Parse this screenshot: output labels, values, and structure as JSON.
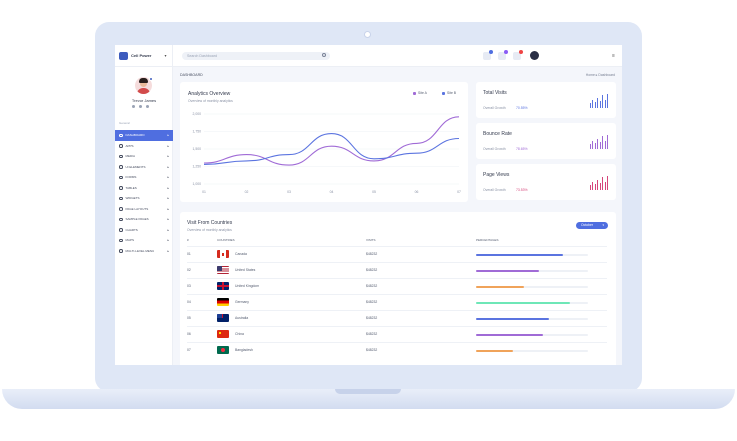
{
  "brand": {
    "name": "Cell Power"
  },
  "search": {
    "placeholder": "Search Dashboard"
  },
  "topbar": {
    "badges": [
      {
        "color": "#4f6ee0"
      },
      {
        "color": "#8b5cf6"
      },
      {
        "color": "#ef4444"
      }
    ]
  },
  "user": {
    "name": "Trevor James"
  },
  "sidebar": {
    "section_label": "General",
    "items": [
      {
        "label": "DASHBOARD",
        "active": true
      },
      {
        "label": "APPS"
      },
      {
        "label": "MEDIA"
      },
      {
        "label": "UI ELEMENTS"
      },
      {
        "label": "FORMS"
      },
      {
        "label": "TABLES"
      },
      {
        "label": "WIDGETS"
      },
      {
        "label": "PAGE LAYOUTS"
      },
      {
        "label": "SAMPLE PAGES"
      },
      {
        "label": "CHARTS"
      },
      {
        "label": "MAPS"
      },
      {
        "label": "MULTI-LEVEL MENU"
      }
    ]
  },
  "breadcrumb": {
    "title": "DASHBOARD",
    "trail": "Home  ▸  Dashboard"
  },
  "analytics": {
    "title": "Analytics Overview",
    "subtitle": "Overview of monthly analytics",
    "legend": [
      {
        "name": "Site A",
        "color": "#a06bd6"
      },
      {
        "name": "Site B",
        "color": "#5b74e0"
      }
    ]
  },
  "chart_data": {
    "type": "line",
    "title": "Analytics Overview",
    "x": [
      "01",
      "02",
      "03",
      "04",
      "05",
      "06",
      "07"
    ],
    "yticks": [
      "1,000",
      "1,250",
      "1,500",
      "1,750",
      "2,000"
    ],
    "ylim": [
      1000,
      2000
    ],
    "series": [
      {
        "name": "Site A",
        "color": "#a06bd6",
        "values": [
          1300,
          1420,
          1270,
          1540,
          1330,
          1580,
          1960
        ]
      },
      {
        "name": "Site B",
        "color": "#5b74e0",
        "values": [
          1280,
          1330,
          1420,
          1720,
          1360,
          1440,
          1650
        ]
      }
    ]
  },
  "stats": [
    {
      "title": "Total Visits",
      "label": "Overall Growth",
      "value": "70.55%",
      "color": "#5b74e0",
      "bars": [
        0.35,
        0.55,
        0.4,
        0.75,
        0.5,
        0.9,
        0.6,
        1.0
      ]
    },
    {
      "title": "Bounce Rate",
      "label": "Overall Growth",
      "value": "78.65%",
      "color": "#a06bd6",
      "bars": [
        0.35,
        0.55,
        0.4,
        0.75,
        0.5,
        0.9,
        0.6,
        1.0
      ]
    },
    {
      "title": "Page Views",
      "label": "Overall Growth",
      "value": "73.53%",
      "color": "#d6457b",
      "bars": [
        0.35,
        0.55,
        0.4,
        0.75,
        0.5,
        0.9,
        0.6,
        1.0
      ]
    }
  ],
  "countries": {
    "title": "Visit From Countries",
    "subtitle": "Overview of monthly analytics",
    "dropdown": "October",
    "headers": {
      "num": "#",
      "country": "COUNTRIES",
      "visits": "VISITS",
      "percentage": "PERCENTAGES"
    },
    "rows": [
      {
        "num": "01",
        "country": "Canada",
        "visits": "$48232",
        "flag": "canada",
        "pct": 0.78,
        "color": "#5b74e0"
      },
      {
        "num": "02",
        "country": "United States",
        "visits": "$48232",
        "flag": "usa",
        "pct": 0.56,
        "color": "#a06bd6"
      },
      {
        "num": "03",
        "country": "United Kingdom",
        "visits": "$48232",
        "flag": "uk",
        "pct": 0.43,
        "color": "#f0a35a"
      },
      {
        "num": "04",
        "country": "Germany",
        "visits": "$48232",
        "flag": "germany",
        "pct": 0.84,
        "color": "#6ee7b7"
      },
      {
        "num": "05",
        "country": "Australia",
        "visits": "$48232",
        "flag": "australia",
        "pct": 0.65,
        "color": "#5b74e0"
      },
      {
        "num": "06",
        "country": "China",
        "visits": "$48232",
        "flag": "china",
        "pct": 0.6,
        "color": "#a06bd6"
      },
      {
        "num": "07",
        "country": "Bangladesh",
        "visits": "$48232",
        "flag": "bangladesh",
        "pct": 0.33,
        "color": "#f0a35a"
      }
    ]
  }
}
